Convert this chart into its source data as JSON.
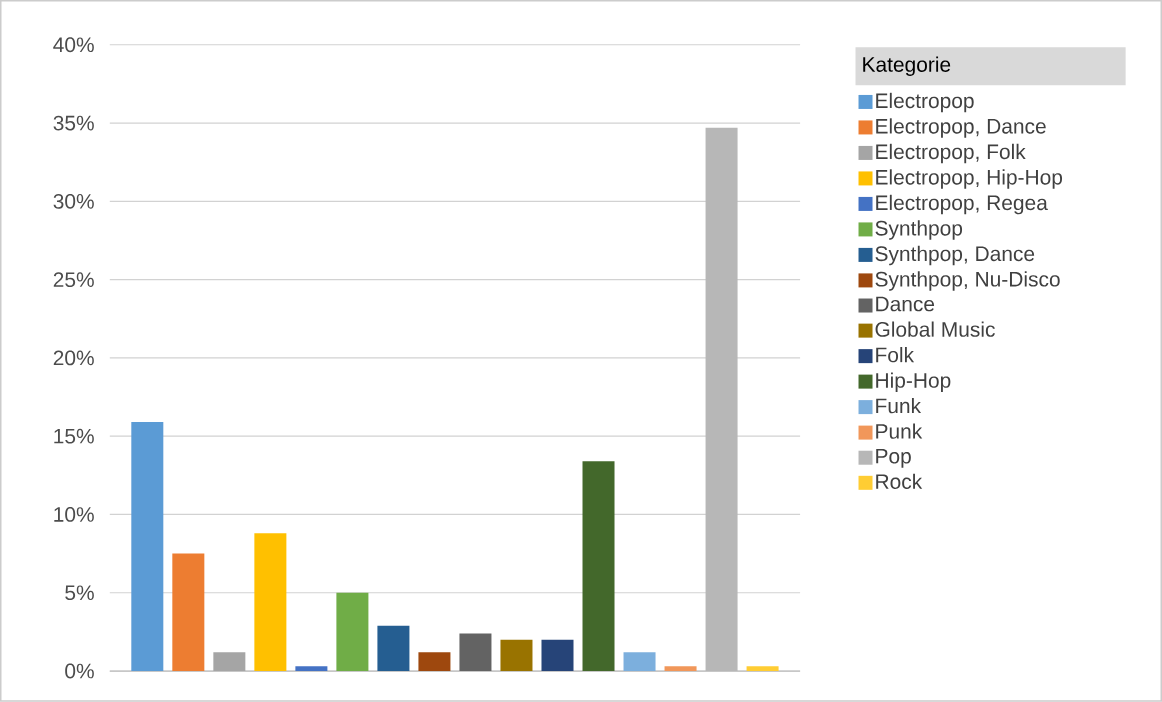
{
  "chart_data": {
    "type": "bar",
    "categories": [
      null
    ],
    "legend_title": "Kategorie",
    "legend": "right",
    "grid": "y",
    "tick_labels": "y",
    "ylim": [
      0,
      40
    ],
    "yticks": [
      {
        "value": 0,
        "label": "0%"
      },
      {
        "value": 5,
        "label": "5%"
      },
      {
        "value": 10,
        "label": "10%"
      },
      {
        "value": 15,
        "label": "15%"
      },
      {
        "value": 20,
        "label": "20%"
      },
      {
        "value": 25,
        "label": "25%"
      },
      {
        "value": 30,
        "label": "30%"
      },
      {
        "value": 35,
        "label": "35%"
      },
      {
        "value": 40,
        "label": "40%"
      }
    ],
    "series": [
      {
        "name": "Electropop",
        "color": "#5b9bd5",
        "values": [
          15.9
        ]
      },
      {
        "name": "Electropop, Dance",
        "color": "#ed7d31",
        "values": [
          7.5
        ]
      },
      {
        "name": "Electropop, Folk",
        "color": "#a5a5a5",
        "values": [
          1.2
        ]
      },
      {
        "name": "Electropop, Hip-Hop",
        "color": "#ffc000",
        "values": [
          8.8
        ]
      },
      {
        "name": "Electropop, Regea",
        "color": "#4472c4",
        "values": [
          0.3
        ]
      },
      {
        "name": "Synthpop",
        "color": "#70ad47",
        "values": [
          5.0
        ]
      },
      {
        "name": "Synthpop, Dance",
        "color": "#255e91",
        "values": [
          2.9
        ]
      },
      {
        "name": "Synthpop, Nu-Disco",
        "color": "#9e480e",
        "values": [
          1.2
        ]
      },
      {
        "name": "Dance",
        "color": "#636363",
        "values": [
          2.4
        ]
      },
      {
        "name": "Global Music",
        "color": "#997300",
        "values": [
          2.0
        ]
      },
      {
        "name": "Folk",
        "color": "#264478",
        "values": [
          2.0
        ]
      },
      {
        "name": "Hip-Hop",
        "color": "#43682b",
        "values": [
          13.4
        ]
      },
      {
        "name": "Funk",
        "color": "#7cafdd",
        "values": [
          1.2
        ]
      },
      {
        "name": "Punk",
        "color": "#f1975a",
        "values": [
          0.3
        ]
      },
      {
        "name": "Pop",
        "color": "#b7b7b7",
        "values": [
          34.7
        ]
      },
      {
        "name": "Rock",
        "color": "#ffcd33",
        "values": [
          0.3
        ]
      }
    ]
  }
}
